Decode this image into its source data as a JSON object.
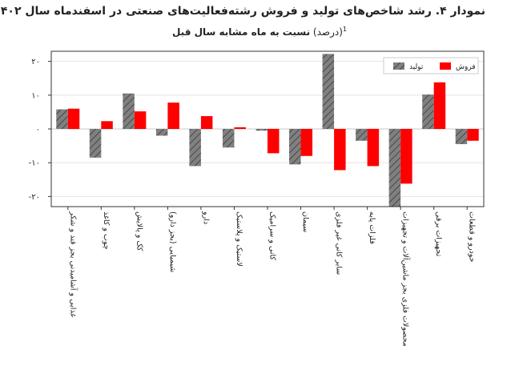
{
  "header": {
    "title": "نمودار ۴. رشد شاخص‌های تولید و فروش رشته‌فعالیت‌های صنعتی در اسفندماه سال ۱۴۰۲",
    "subtitle_main": "نسبت به ماه مشابه سال قبل",
    "subtitle_unit": "(درصد)",
    "footnote_mark": "1"
  },
  "chart_data": {
    "type": "bar",
    "title": "نمودار ۴. رشد شاخص‌های تولید و فروش رشته‌فعالیت‌های صنعتی در اسفندماه سال ۱۴۰۲",
    "subtitle": "نسبت به ماه مشابه سال قبل (درصد)",
    "xlabel": "",
    "ylabel": "",
    "ylim": [
      -23,
      23
    ],
    "yticks": [
      20,
      10,
      0,
      -10,
      -20
    ],
    "ytick_labels": [
      "۲۰",
      "۱۰",
      "۰",
      "-۱۰",
      "-۲۰"
    ],
    "grid": "horizontal",
    "legend_position": "top-right",
    "categories": [
      "غذایی و آشامیدنی بجز قند و شکر",
      "چوب و کاغذ",
      "کک و پالایش",
      "شیمیایی (بجز دارو)",
      "دارو",
      "لاستیک و پلاستیک",
      "کانی و سرامیک",
      "سیمان",
      "سایر کانی غیر فلزی",
      "فلزات پایه",
      "محصولات فلزی بجز ماشین‌آلات و تجهیزات",
      "تجهیزات برقی",
      "خودرو و قطعات"
    ],
    "series": [
      {
        "name": "تولید",
        "color": "#808080",
        "pattern": "hatch",
        "values": [
          5.8,
          -8.5,
          10.5,
          -2,
          -11,
          -5.5,
          -0.5,
          -10.5,
          22.2,
          -3.5,
          -23,
          10.2,
          -4.5
        ]
      },
      {
        "name": "فروش",
        "color": "#ff0000",
        "values": [
          6,
          2.3,
          5.2,
          7.8,
          3.8,
          0.5,
          -7.2,
          -8,
          -12.2,
          -11,
          -16.2,
          13.8,
          -3.5
        ]
      }
    ]
  }
}
